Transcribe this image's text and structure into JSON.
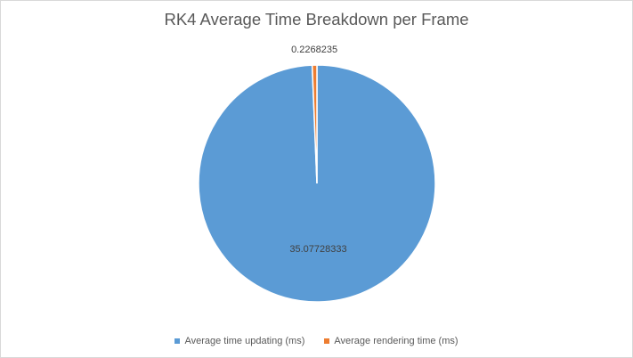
{
  "chart_data": {
    "type": "pie",
    "title": "RK4 Average Time Breakdown per Frame",
    "series": [
      {
        "name": "Average time updating (ms)",
        "value": 35.07728333,
        "label": "35.07728333",
        "color": "#5b9bd5"
      },
      {
        "name": "Average rendering time (ms)",
        "value": 0.2268235,
        "label": "0.2268235",
        "color": "#ed7d31"
      }
    ],
    "legend_position": "bottom"
  }
}
